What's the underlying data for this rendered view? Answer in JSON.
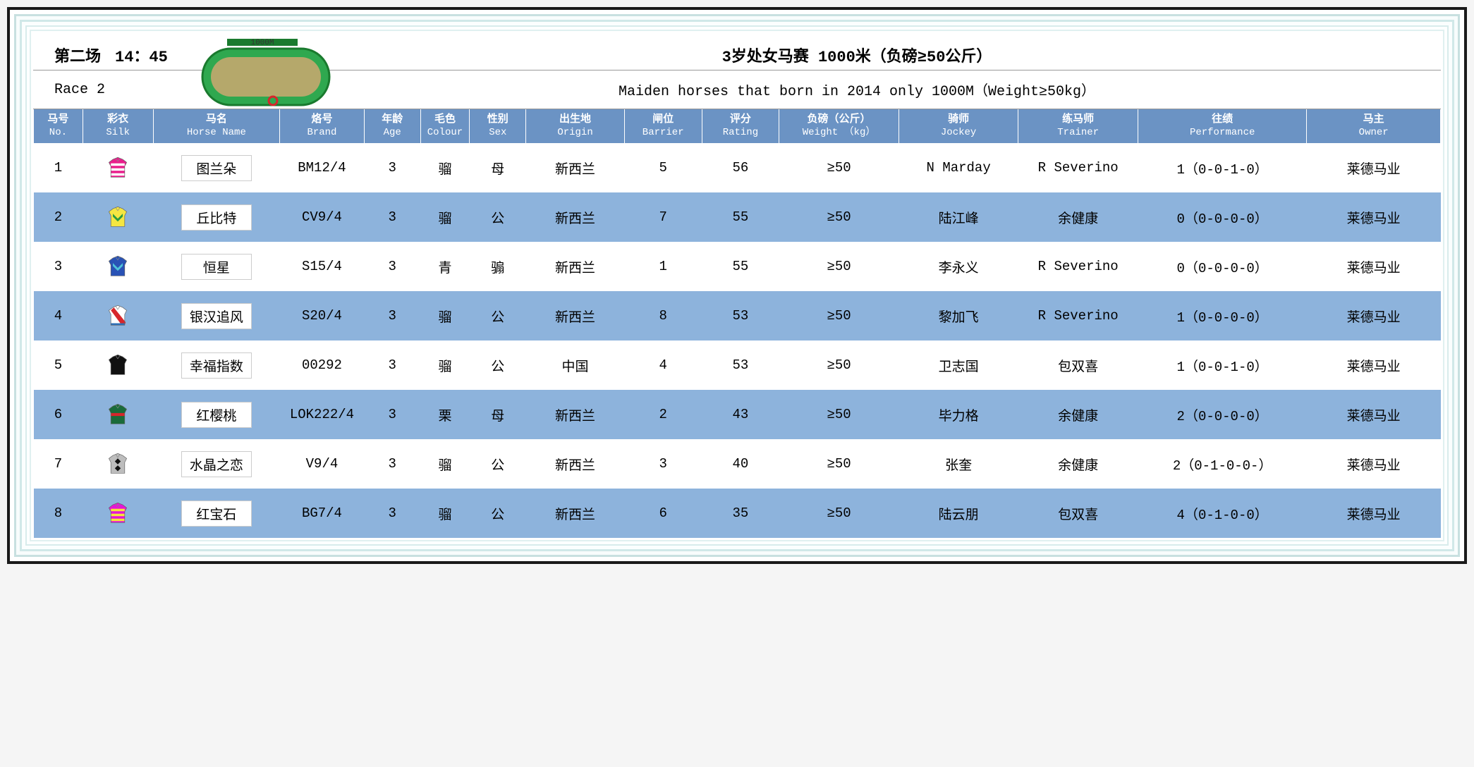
{
  "header": {
    "race_label_cn": "第二场",
    "time": "14：45",
    "race_title_cn": "3岁处女马赛 1000米（负磅≥50公斤）",
    "race_label_en": "Race 2",
    "race_title_en": "Maiden horses that born in 2014 only  1000M（Weight≥50kg）",
    "track_distance": "1000M"
  },
  "columns": [
    {
      "cn": "马号",
      "en": "No.",
      "width": "3.5%"
    },
    {
      "cn": "彩衣",
      "en": "Silk",
      "width": "5%"
    },
    {
      "cn": "马名",
      "en": "Horse Name",
      "width": "9%"
    },
    {
      "cn": "烙号",
      "en": "Brand",
      "width": "6%"
    },
    {
      "cn": "年龄",
      "en": "Age",
      "width": "4%"
    },
    {
      "cn": "毛色",
      "en": "Colour",
      "width": "3.5%"
    },
    {
      "cn": "性别",
      "en": "Sex",
      "width": "4%"
    },
    {
      "cn": "出生地",
      "en": "Origin",
      "width": "7%"
    },
    {
      "cn": "闸位",
      "en": "Barrier",
      "width": "5.5%"
    },
    {
      "cn": "评分",
      "en": "Rating",
      "width": "5.5%"
    },
    {
      "cn": "负磅（公斤）",
      "en": "Weight （kg）",
      "width": "8.5%"
    },
    {
      "cn": "骑师",
      "en": "Jockey",
      "width": "8.5%"
    },
    {
      "cn": "练马师",
      "en": "Trainer",
      "width": "8.5%"
    },
    {
      "cn": "往绩",
      "en": "Performance",
      "width": "12%"
    },
    {
      "cn": "马主",
      "en": "Owner",
      "width": "9.5%"
    }
  ],
  "rows": [
    {
      "no": "1",
      "silk": {
        "type": "stripes",
        "body": "#e91e8c",
        "accent": "#ffffff"
      },
      "name": "图兰朵",
      "brand": "BM12/4",
      "age": "3",
      "colour": "骝",
      "sex": "母",
      "origin": "新西兰",
      "barrier": "5",
      "rating": "56",
      "weight": "≥50",
      "jockey": "N Marday",
      "trainer": "R Severino",
      "perf": "1（0-0-1-0）",
      "owner": "莱德马业"
    },
    {
      "no": "2",
      "silk": {
        "type": "chevron",
        "body": "#f5e642",
        "accent": "#2b9b3f"
      },
      "name": "丘比特",
      "brand": "CV9/4",
      "age": "3",
      "colour": "骝",
      "sex": "公",
      "origin": "新西兰",
      "barrier": "7",
      "rating": "55",
      "weight": "≥50",
      "jockey": "陆江峰",
      "trainer": "余健康",
      "perf": "0（0-0-0-0）",
      "owner": "莱德马业"
    },
    {
      "no": "3",
      "silk": {
        "type": "chevron",
        "body": "#2952b5",
        "accent": "#4fc3d9"
      },
      "name": "恒星",
      "brand": "S15/4",
      "age": "3",
      "colour": "青",
      "sex": "骟",
      "origin": "新西兰",
      "barrier": "1",
      "rating": "55",
      "weight": "≥50",
      "jockey": "李永义",
      "trainer": "R Severino",
      "perf": "0（0-0-0-0）",
      "owner": "莱德马业"
    },
    {
      "no": "4",
      "silk": {
        "type": "sash",
        "body": "#ffffff",
        "accent": "#d7262b",
        "trim": "#2e6fb5"
      },
      "name": "银汉追风",
      "brand": "S20/4",
      "age": "3",
      "colour": "骝",
      "sex": "公",
      "origin": "新西兰",
      "barrier": "8",
      "rating": "53",
      "weight": "≥50",
      "jockey": "黎加飞",
      "trainer": "R Severino",
      "perf": "1（0-0-0-0）",
      "owner": "莱德马业"
    },
    {
      "no": "5",
      "silk": {
        "type": "plain",
        "body": "#111111",
        "accent": "#ffffff"
      },
      "name": "幸福指数",
      "brand": "00292",
      "age": "3",
      "colour": "骝",
      "sex": "公",
      "origin": "中国",
      "barrier": "4",
      "rating": "53",
      "weight": "≥50",
      "jockey": "卫志国",
      "trainer": "包双喜",
      "perf": "1（0-0-1-0）",
      "owner": "莱德马业"
    },
    {
      "no": "6",
      "silk": {
        "type": "hoops",
        "body": "#1a6b3a",
        "accent": "#d7262b"
      },
      "name": "红樱桃",
      "brand": "LOK222/4",
      "age": "3",
      "colour": "栗",
      "sex": "母",
      "origin": "新西兰",
      "barrier": "2",
      "rating": "43",
      "weight": "≥50",
      "jockey": "毕力格",
      "trainer": "余健康",
      "perf": "2（0-0-0-0）",
      "owner": "莱德马业"
    },
    {
      "no": "7",
      "silk": {
        "type": "diamonds",
        "body": "#bdbdbd",
        "accent": "#111111"
      },
      "name": "水晶之恋",
      "brand": "V9/4",
      "age": "3",
      "colour": "骝",
      "sex": "公",
      "origin": "新西兰",
      "barrier": "3",
      "rating": "40",
      "weight": "≥50",
      "jockey": "张奎",
      "trainer": "余健康",
      "perf": "2（0-1-0-0-）",
      "owner": "莱德马业"
    },
    {
      "no": "8",
      "silk": {
        "type": "stripes",
        "body": "#e516d6",
        "accent": "#f7e23a"
      },
      "name": "红宝石",
      "brand": "BG7/4",
      "age": "3",
      "colour": "骝",
      "sex": "公",
      "origin": "新西兰",
      "barrier": "6",
      "rating": "35",
      "weight": "≥50",
      "jockey": "陆云朋",
      "trainer": "包双喜",
      "perf": "4（0-1-0-0）",
      "owner": "莱德马业"
    }
  ],
  "colors": {
    "header_bg": "#6b93c4",
    "row_even_bg": "#8db3dc",
    "row_odd_bg": "#ffffff",
    "frame_outer": "#1a1a1a",
    "frame_teal": "#c8e0e0",
    "track_inner": "#b5a86b",
    "track_outer": "#2fa84f"
  }
}
